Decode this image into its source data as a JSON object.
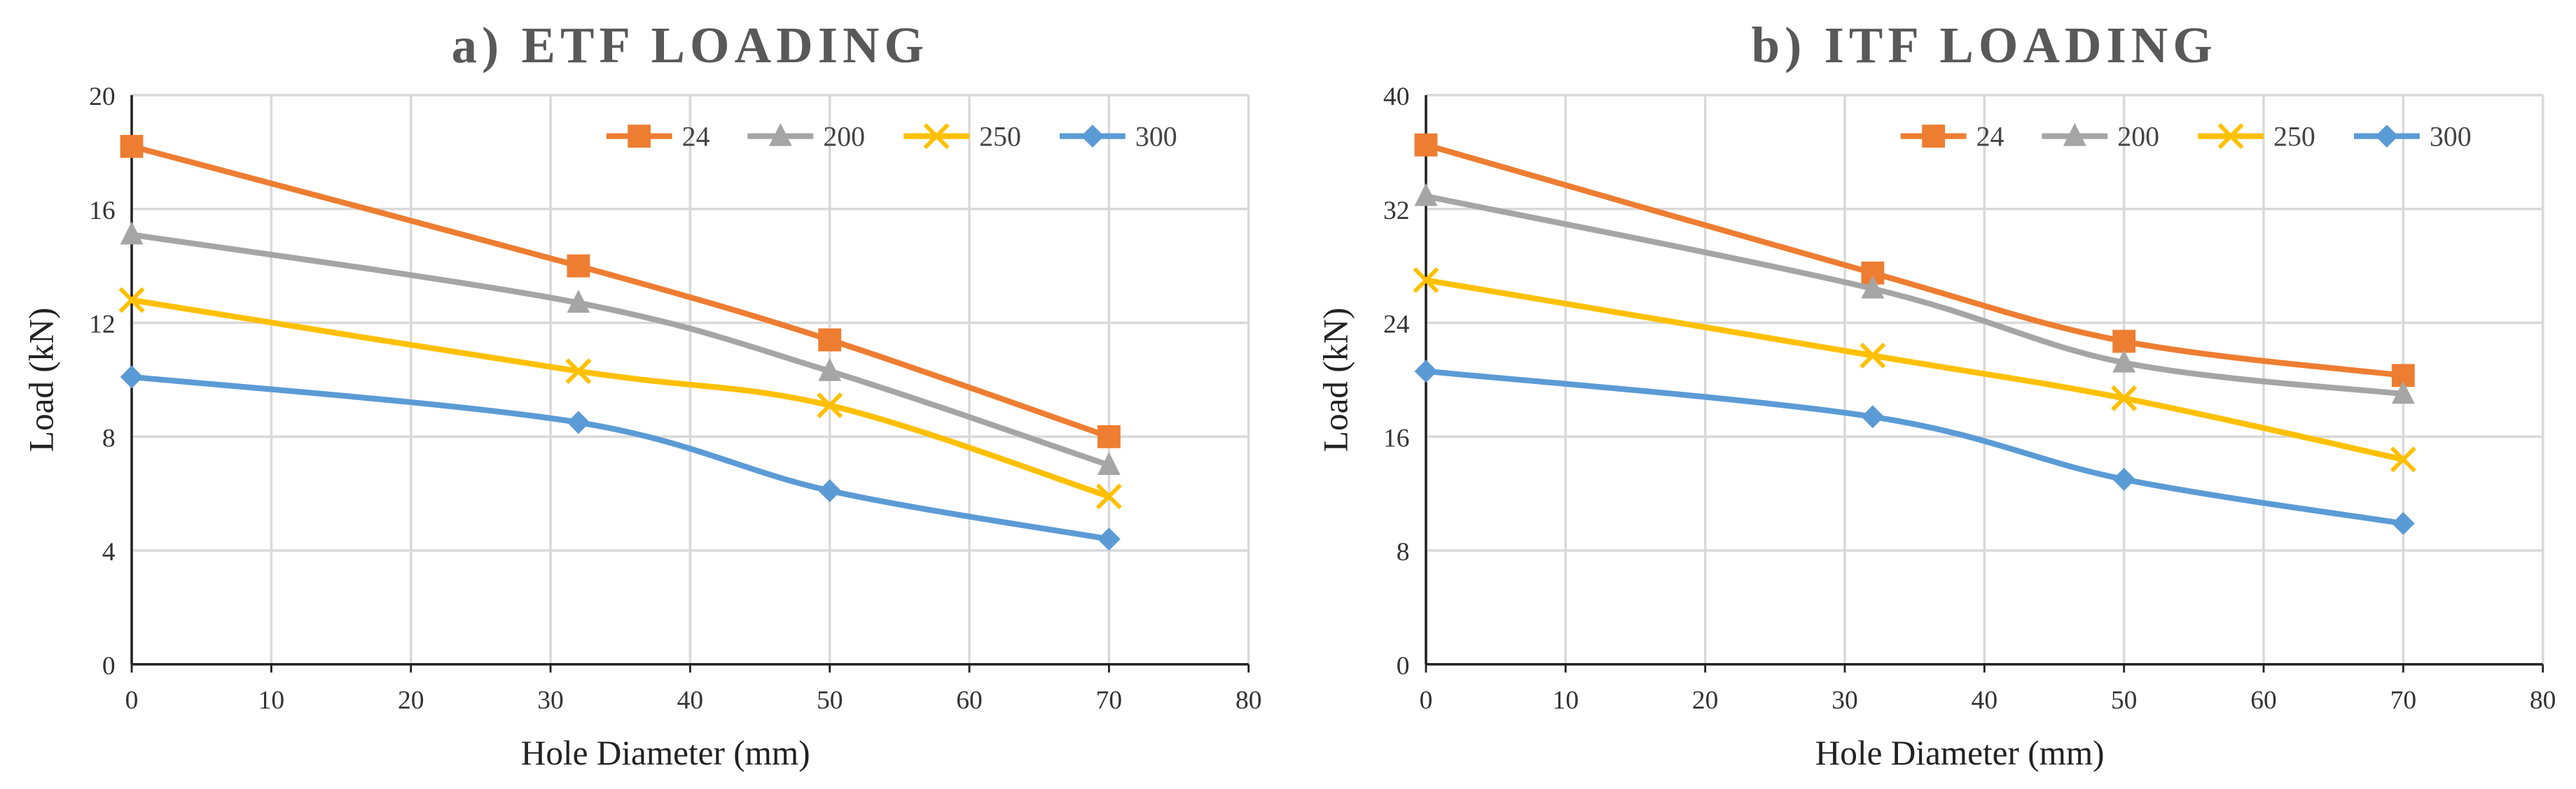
{
  "chart_data": [
    {
      "type": "line",
      "title": "a) ETF LOADING",
      "x_label": "Hole Diameter (mm)",
      "y_label": "Load (kN)",
      "x": [
        0,
        32,
        50,
        70
      ],
      "series": [
        {
          "name": "24",
          "color": "#ED7D31",
          "marker": "square",
          "values": [
            18.2,
            14.0,
            11.4,
            8.0
          ]
        },
        {
          "name": "200",
          "color": "#A5A5A5",
          "marker": "triangle",
          "values": [
            15.1,
            12.7,
            10.3,
            7.0
          ]
        },
        {
          "name": "250",
          "color": "#FFC000",
          "marker": "x",
          "values": [
            12.8,
            10.3,
            9.1,
            5.9
          ]
        },
        {
          "name": "300",
          "color": "#5B9BD5",
          "marker": "diamond",
          "values": [
            10.1,
            8.5,
            6.1,
            4.4
          ]
        }
      ],
      "xlim": [
        0,
        80
      ],
      "xticks": [
        0,
        10,
        20,
        30,
        40,
        50,
        60,
        70,
        80
      ],
      "ylim": [
        0,
        20
      ],
      "yticks": [
        0,
        4,
        8,
        12,
        16,
        20
      ],
      "grid": true,
      "smooth": true,
      "legend": "top-right"
    },
    {
      "type": "line",
      "title": "b) ITF LOADING",
      "x_label": "Hole Diameter (mm)",
      "y_label": "Load (kN)",
      "x": [
        0,
        32,
        50,
        70
      ],
      "series": [
        {
          "name": "24",
          "color": "#ED7D31",
          "marker": "square",
          "values": [
            36.5,
            27.5,
            22.7,
            20.3
          ]
        },
        {
          "name": "200",
          "color": "#A5A5A5",
          "marker": "triangle",
          "values": [
            32.9,
            26.4,
            21.2,
            19.0
          ]
        },
        {
          "name": "250",
          "color": "#FFC000",
          "marker": "x",
          "values": [
            27.0,
            21.7,
            18.7,
            14.4
          ]
        },
        {
          "name": "300",
          "color": "#5B9BD5",
          "marker": "diamond",
          "values": [
            20.6,
            17.4,
            13.0,
            9.9
          ]
        }
      ],
      "xlim": [
        0,
        80
      ],
      "xticks": [
        0,
        10,
        20,
        30,
        40,
        50,
        60,
        70,
        80
      ],
      "ylim": [
        0,
        40
      ],
      "yticks": [
        0,
        8,
        16,
        24,
        32,
        40
      ],
      "grid": true,
      "smooth": true,
      "legend": "top-right"
    }
  ]
}
